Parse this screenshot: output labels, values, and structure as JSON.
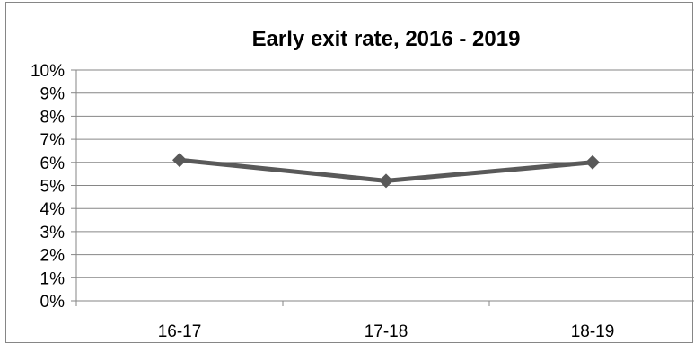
{
  "chart_data": {
    "type": "line",
    "title": "Early exit rate, 2016 - 2019",
    "xlabel": "",
    "ylabel": "",
    "categories": [
      "16-17",
      "17-18",
      "18-19"
    ],
    "series": [
      {
        "values": [
          6.1,
          5.2,
          6.0
        ],
        "color": "#595959",
        "marker": "diamond"
      }
    ],
    "ylim": [
      0,
      10
    ],
    "yticks": [
      "0%",
      "1%",
      "2%",
      "3%",
      "4%",
      "5%",
      "6%",
      "7%",
      "8%",
      "9%",
      "10%"
    ],
    "grid": true,
    "legend": "none",
    "colors": {
      "gridline": "#868686",
      "axis": "#868686",
      "line": "#595959"
    }
  }
}
